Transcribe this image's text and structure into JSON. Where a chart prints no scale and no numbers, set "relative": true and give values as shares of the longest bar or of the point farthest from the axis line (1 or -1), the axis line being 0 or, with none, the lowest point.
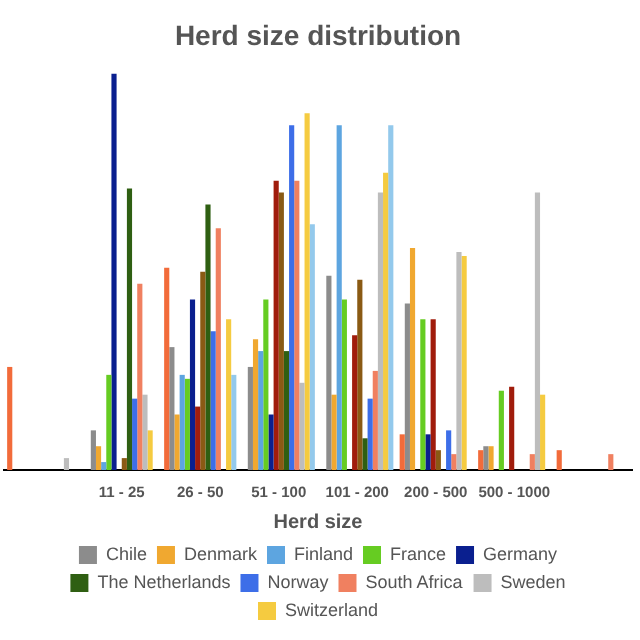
{
  "chart_data": {
    "type": "bar",
    "title": "Herd size distribution",
    "xlabel": "Herd size",
    "relative": true,
    "grid": false,
    "legend": "bottom",
    "categories": [
      null,
      "11 - 25",
      "26 - 50",
      "51 - 100",
      "101 - 200",
      "200 - 500",
      "500 - 1000",
      null
    ],
    "series": [
      {
        "color": "#f26b3a",
        "values": [
          0.26,
          0,
          0.51,
          0,
          0,
          0.09,
          0.05,
          0.05
        ]
      },
      {
        "name": "Chile",
        "color": "#8c8c8c",
        "values": [
          0,
          0.1,
          0.31,
          0.26,
          0.49,
          0.42,
          0.06,
          0
        ]
      },
      {
        "name": "Denmark",
        "color": "#f0a830",
        "values": [
          0,
          0.06,
          0.14,
          0.33,
          0.19,
          0.56,
          0.06,
          0
        ]
      },
      {
        "name": "Finland",
        "color": "#5da5e0",
        "values": [
          0,
          0.02,
          0.24,
          0.3,
          0.87,
          0,
          0,
          0
        ]
      },
      {
        "name": "France",
        "color": "#66cc22",
        "values": [
          0,
          0.24,
          0.23,
          0.43,
          0.43,
          0.38,
          0.2,
          0
        ]
      },
      {
        "name": "Germany",
        "color": "#0a1f8f",
        "values": [
          0,
          1,
          0.43,
          0.14,
          0,
          0.09,
          0,
          0
        ]
      },
      {
        "color": "#a01c0c",
        "values": [
          0,
          0,
          0.16,
          0.73,
          0.34,
          0.38,
          0.21,
          0
        ]
      },
      {
        "color": "#8a5a14",
        "values": [
          0,
          0.03,
          0.5,
          0.7,
          0.48,
          0.05,
          0,
          0
        ]
      },
      {
        "name": "The Netherlands",
        "color": "#2f5f12",
        "values": [
          0,
          0.71,
          0.67,
          0.3,
          0.08,
          0,
          0,
          0
        ]
      },
      {
        "name": "Norway",
        "color": "#3d6ee8",
        "values": [
          0,
          0.18,
          0.35,
          0.87,
          0.18,
          0.1,
          0,
          0
        ]
      },
      {
        "name": "South Africa",
        "color": "#f08060",
        "values": [
          0,
          0.47,
          0.61,
          0.73,
          0.25,
          0.04,
          0.04,
          0.04
        ]
      },
      {
        "name": "Sweden",
        "color": "#bdbdbd",
        "values": [
          0.03,
          0.19,
          0,
          0.22,
          0.7,
          0.55,
          0.7,
          0
        ]
      },
      {
        "name": "Switzerland",
        "color": "#f5cb40",
        "values": [
          0,
          0.1,
          0.38,
          0.9,
          0.75,
          0.54,
          0.19,
          0
        ]
      },
      {
        "color": "#93c9ec",
        "values": [
          0,
          0,
          0.24,
          0.62,
          0.87,
          0,
          0,
          0
        ]
      }
    ]
  }
}
